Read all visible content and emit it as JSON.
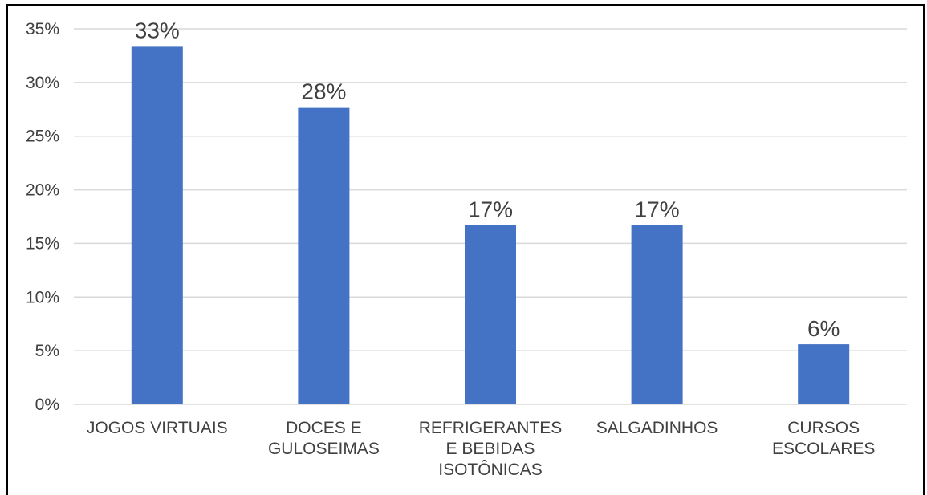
{
  "chart_data": {
    "type": "bar",
    "categories": [
      [
        "JOGOS VIRTUAIS"
      ],
      [
        "DOCES E",
        "GULOSEIMAS"
      ],
      [
        "REFRIGERANTES",
        "E BEBIDAS",
        "ISOTÔNICAS"
      ],
      [
        "SALGADINHOS"
      ],
      [
        "CURSOS",
        "ESCOLARES"
      ]
    ],
    "values": [
      33.4,
      27.7,
      16.7,
      16.7,
      5.6
    ],
    "data_labels": [
      "33%",
      "28%",
      "17%",
      "17%",
      "6%"
    ],
    "y_ticks": [
      "0%",
      "5%",
      "10%",
      "15%",
      "20%",
      "25%",
      "30%",
      "35%"
    ],
    "ylim": [
      0,
      35
    ],
    "y_tick_step": 5,
    "title": "",
    "xlabel": "",
    "ylabel": "",
    "grid": true,
    "legend": "none",
    "colors": {
      "bar": "#4472C4",
      "grid": "#D9D9D9",
      "text": "#404040"
    }
  }
}
